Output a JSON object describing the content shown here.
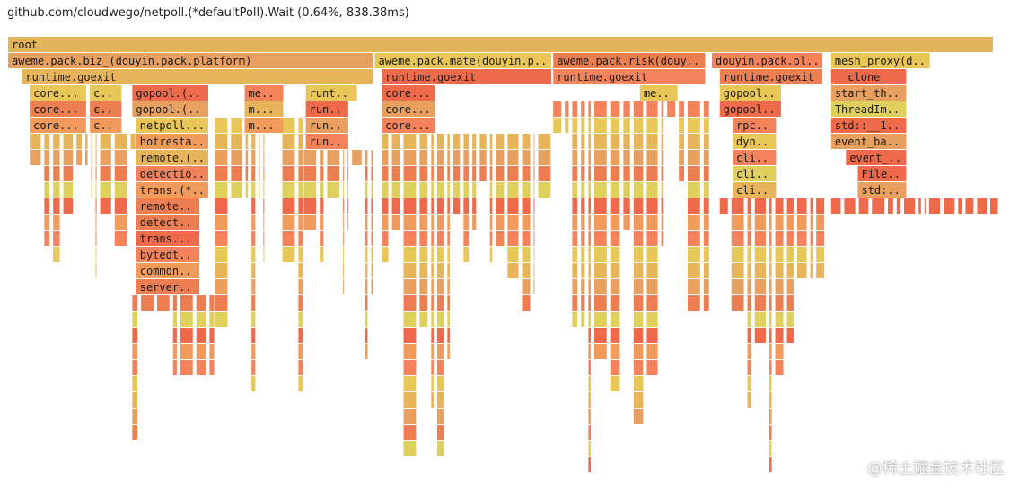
{
  "status": "github.com/cloudwego/netpoll.(*defaultPoll).Wait (0.64%, 838.38ms)",
  "watermark": "@稀土掘金技术社区",
  "colors": {
    "root": "#e2b55c",
    "palette": [
      "#ed7e52",
      "#f09a5c",
      "#e8b45a",
      "#dfd05e",
      "#f4835c",
      "#e8a060",
      "#ef6a4b",
      "#e9c658"
    ]
  },
  "chart_data": {
    "type": "flamegraph",
    "title": "github.com/cloudwego/netpoll.(*defaultPoll).Wait (0.64%, 838.38ms)",
    "total_width_units": 1000,
    "frames": [
      {
        "name": "root",
        "depth": 0,
        "start": 0,
        "width": 1000
      },
      {
        "name": "aweme.pack.biz_(douyin.pack.platform)",
        "depth": 1,
        "start": 0,
        "width": 371
      },
      {
        "name": "aweme.pack.mate(douyin.pac...",
        "depth": 1,
        "start": 372,
        "width": 180
      },
      {
        "name": "aweme.pack.risk(douyin....",
        "depth": 1,
        "start": 553,
        "width": 155
      },
      {
        "name": "douyin.pack.pla...",
        "depth": 1,
        "start": 714,
        "width": 113
      },
      {
        "name": "mesh_proxy(do...",
        "depth": 1,
        "start": 835,
        "width": 101
      },
      {
        "name": "runtime.goexit",
        "depth": 2,
        "start": 14,
        "width": 357
      },
      {
        "name": "runtime.goexit",
        "depth": 2,
        "start": 379,
        "width": 173
      },
      {
        "name": "runtime.goexit",
        "depth": 2,
        "start": 553,
        "width": 155
      },
      {
        "name": "runtime.goexit",
        "depth": 2,
        "start": 722,
        "width": 105
      },
      {
        "name": "__clone",
        "depth": 2,
        "start": 835,
        "width": 77
      },
      {
        "name": "core.(*...",
        "depth": 3,
        "start": 22,
        "width": 58
      },
      {
        "name": "cor...",
        "depth": 3,
        "start": 83,
        "width": 33
      },
      {
        "name": "gopool.(*w...",
        "depth": 3,
        "start": 126,
        "width": 78
      },
      {
        "name": "met...",
        "depth": 3,
        "start": 240,
        "width": 40
      },
      {
        "name": "runti...",
        "depth": 3,
        "start": 302,
        "width": 53
      },
      {
        "name": "core.(*...",
        "depth": 3,
        "start": 379,
        "width": 55
      },
      {
        "name": "me...",
        "depth": 3,
        "start": 641,
        "width": 39
      },
      {
        "name": "gopool...",
        "depth": 3,
        "start": 722,
        "width": 63
      },
      {
        "name": "start_thread",
        "depth": 3,
        "start": 835,
        "width": 77
      },
      {
        "name": "core.(*...",
        "depth": 4,
        "start": 22,
        "width": 58
      },
      {
        "name": "cor...",
        "depth": 4,
        "start": 83,
        "width": 33
      },
      {
        "name": "gopool.(*w...",
        "depth": 4,
        "start": 126,
        "width": 78
      },
      {
        "name": "m...",
        "depth": 4,
        "start": 240,
        "width": 40
      },
      {
        "name": "runti...",
        "depth": 4,
        "start": 302,
        "width": 44
      },
      {
        "name": "core.(*...",
        "depth": 4,
        "start": 379,
        "width": 55
      },
      {
        "name": "gopool...",
        "depth": 4,
        "start": 722,
        "width": 63
      },
      {
        "name": "ThreadImpl...",
        "depth": 4,
        "start": 835,
        "width": 77
      },
      {
        "name": "core.(*...",
        "depth": 5,
        "start": 22,
        "width": 58
      },
      {
        "name": "cor...",
        "depth": 5,
        "start": 83,
        "width": 33
      },
      {
        "name": "netpoll.(*c...",
        "depth": 5,
        "start": 130,
        "width": 74
      },
      {
        "name": "m...",
        "depth": 5,
        "start": 240,
        "width": 40
      },
      {
        "name": "runti...",
        "depth": 5,
        "start": 302,
        "width": 44
      },
      {
        "name": "core.(*...",
        "depth": 5,
        "start": 379,
        "width": 55
      },
      {
        "name": "rpc...",
        "depth": 5,
        "start": 735,
        "width": 45
      },
      {
        "name": "std::__1::...",
        "depth": 5,
        "start": 835,
        "width": 77
      },
      {
        "name": "hotrestart....",
        "depth": 6,
        "start": 130,
        "width": 74
      },
      {
        "name": "runti...",
        "depth": 6,
        "start": 302,
        "width": 44
      },
      {
        "name": "dyn...",
        "depth": 6,
        "start": 735,
        "width": 45
      },
      {
        "name": "event_base...",
        "depth": 6,
        "start": 835,
        "width": 77
      },
      {
        "name": "remote.(*...",
        "depth": 7,
        "start": 130,
        "width": 74
      },
      {
        "name": "clie...",
        "depth": 7,
        "start": 735,
        "width": 45
      },
      {
        "name": "event_p...",
        "depth": 7,
        "start": 850,
        "width": 62
      },
      {
        "name": "detection....",
        "depth": 8,
        "start": 130,
        "width": 74
      },
      {
        "name": "clie...",
        "depth": 8,
        "start": 735,
        "width": 45
      },
      {
        "name": "FileEv...",
        "depth": 8,
        "start": 862,
        "width": 50
      },
      {
        "name": "trans.(*sv...",
        "depth": 9,
        "start": 130,
        "width": 74
      },
      {
        "name": "clie...",
        "depth": 9,
        "start": 735,
        "width": 45
      },
      {
        "name": "std::__...",
        "depth": 9,
        "start": 862,
        "width": 50
      },
      {
        "name": "remote.(...",
        "depth": 10,
        "start": 130,
        "width": 65
      },
      {
        "name": "detectio...",
        "depth": 11,
        "start": 130,
        "width": 65
      },
      {
        "name": "trans.(*...",
        "depth": 12,
        "start": 130,
        "width": 65
      },
      {
        "name": "bytedtra...",
        "depth": 13,
        "start": 130,
        "width": 65
      },
      {
        "name": "common....",
        "depth": 14,
        "start": 130,
        "width": 65
      },
      {
        "name": "server.(...",
        "depth": 15,
        "start": 130,
        "width": 65
      }
    ]
  }
}
